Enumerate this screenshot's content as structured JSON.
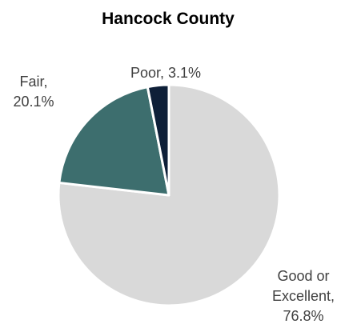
{
  "chart_data": {
    "type": "pie",
    "title": "Hancock County",
    "categories": [
      "Good or Excellent",
      "Fair",
      "Poor"
    ],
    "values": [
      76.8,
      20.1,
      3.1
    ],
    "unit": "%",
    "colors": [
      "#d9d9d9",
      "#3d6e6e",
      "#0e1f38"
    ],
    "start_angle": "12 o'clock, clockwise",
    "data_labels": [
      {
        "lines": [
          "Good or",
          "Excellent,",
          "76.8%"
        ]
      },
      {
        "lines": [
          "Fair,",
          "20.1%"
        ]
      },
      {
        "lines": [
          "Poor, 3.1%"
        ]
      }
    ],
    "legend": "none"
  }
}
